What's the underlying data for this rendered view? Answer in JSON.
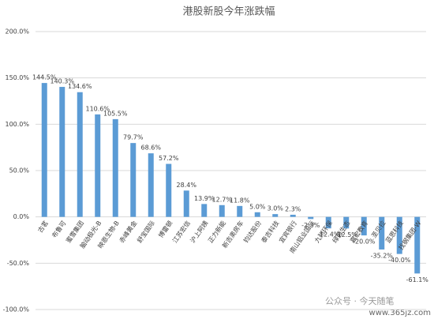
{
  "chart_data": {
    "type": "bar",
    "title": "港股新股今年涨跌幅",
    "categories": [
      "古茗",
      "布鲁可",
      "蜜雪集团",
      "脑动极光-B",
      "映恩生物-B",
      "赤峰黄金",
      "舒宝国际",
      "博雷顿",
      "江苏宏信",
      "沪上阿姨",
      "正力新能",
      "新吉奥房车",
      "钧达股份",
      "泰吉科技",
      "宜宾银行",
      "南山铝业国际",
      "九州环保",
      "绿茵生态",
      "嘉宏教育",
      "圣贝拉",
      "蓝思科技",
      "找钢集团-W"
    ],
    "values": [
      144.5,
      140.3,
      134.6,
      110.6,
      105.5,
      79.7,
      68.6,
      57.2,
      28.4,
      13.9,
      12.7,
      11.8,
      5.0,
      3.0,
      2.3,
      -2.3,
      -12.4,
      -12.5,
      -20.0,
      -35.2,
      -40.0,
      -61.1
    ],
    "value_labels": [
      "144.5%",
      "140.3%",
      "134.6%",
      "110.6%",
      "105.5%",
      "79.7%",
      "68.6%",
      "57.2%",
      "28.4%",
      "13.9%",
      "12.7%",
      "11.8%",
      "5.0%",
      "3.0%",
      "2.3%",
      "-2.3%",
      "-12.4%",
      "-12.5%",
      "-20.0%",
      "-35.2%",
      "-40.0%",
      "-61.1%"
    ],
    "color": "#5b9bd5",
    "ylim": [
      -100,
      200
    ],
    "yticks": [
      {
        "value": -100,
        "label": "-100.0%"
      },
      {
        "value": -50,
        "label": "-50.0%"
      },
      {
        "value": 0,
        "label": "0.0%"
      },
      {
        "value": 50,
        "label": "50.0%"
      },
      {
        "value": 100,
        "label": "100.0%"
      },
      {
        "value": 150,
        "label": "150.0%"
      },
      {
        "value": 200,
        "label": "200.0%"
      }
    ],
    "grid": true
  },
  "watermark": "公众号 · 今天随笔",
  "watermark_url": "www.365jz.com"
}
